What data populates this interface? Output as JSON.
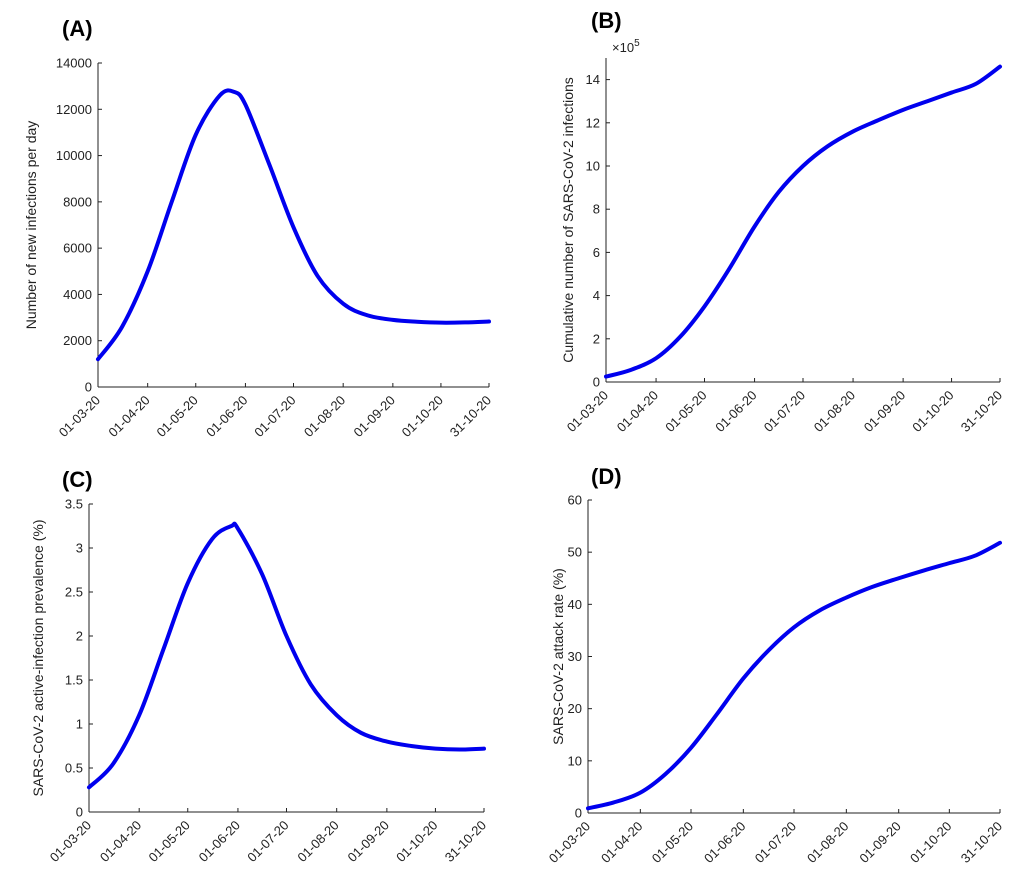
{
  "colors": {
    "line": "#0000ee",
    "axis": "#222222"
  },
  "chart_data": [
    {
      "panel": "(A)",
      "type": "line",
      "title": "",
      "xlabel": "",
      "ylabel": "Number of new infections per day",
      "x_ticks": [
        "01-03-20",
        "01-04-20",
        "01-05-20",
        "01-06-20",
        "01-07-20",
        "01-08-20",
        "01-09-20",
        "01-10-20",
        "31-10-20"
      ],
      "y_ticks": [
        "0",
        "2000",
        "4000",
        "6000",
        "8000",
        "10000",
        "12000",
        "14000"
      ],
      "ylim": [
        0,
        14000
      ],
      "exponent": "",
      "grid": false,
      "series": [
        {
          "x": [
            "01-03-20",
            "16-03-20",
            "01-04-20",
            "16-04-20",
            "01-05-20",
            "16-05-20",
            "25-05-20",
            "01-06-20",
            "16-06-20",
            "01-07-20",
            "16-07-20",
            "01-08-20",
            "16-08-20",
            "01-09-20",
            "16-09-20",
            "01-10-20",
            "16-10-20",
            "31-10-20"
          ],
          "y": [
            1200,
            2600,
            5000,
            8000,
            10900,
            12600,
            12750,
            12200,
            9600,
            6900,
            4800,
            3600,
            3100,
            2900,
            2820,
            2780,
            2790,
            2830
          ]
        }
      ]
    },
    {
      "panel": "(B)",
      "type": "line",
      "title": "",
      "xlabel": "",
      "ylabel": "Cumulative number of SARS-CoV-2 infections",
      "x_ticks": [
        "01-03-20",
        "01-04-20",
        "01-05-20",
        "01-06-20",
        "01-07-20",
        "01-08-20",
        "01-09-20",
        "01-10-20",
        "31-10-20"
      ],
      "y_ticks": [
        "0",
        "2",
        "4",
        "6",
        "8",
        "10",
        "12",
        "14"
      ],
      "ylim": [
        0,
        15
      ],
      "exponent": "×10",
      "exponent_power": "5",
      "grid": false,
      "series": [
        {
          "x": [
            "01-03-20",
            "16-03-20",
            "01-04-20",
            "16-04-20",
            "01-05-20",
            "16-05-20",
            "01-06-20",
            "16-06-20",
            "01-07-20",
            "16-07-20",
            "01-08-20",
            "16-08-20",
            "01-09-20",
            "16-09-20",
            "01-10-20",
            "16-10-20",
            "31-10-20"
          ],
          "y": [
            0.25,
            0.55,
            1.1,
            2.1,
            3.5,
            5.2,
            7.2,
            8.8,
            10.0,
            10.9,
            11.6,
            12.1,
            12.6,
            13.0,
            13.4,
            13.8,
            14.6
          ]
        }
      ]
    },
    {
      "panel": "(C)",
      "type": "line",
      "title": "",
      "xlabel": "",
      "ylabel": "SARS-CoV-2 active-infection prevalence (%)",
      "x_ticks": [
        "01-03-20",
        "01-04-20",
        "01-05-20",
        "01-06-20",
        "01-07-20",
        "01-08-20",
        "01-09-20",
        "01-10-20",
        "31-10-20"
      ],
      "y_ticks": [
        "0",
        "0.5",
        "1",
        "1.5",
        "2",
        "2.5",
        "3",
        "3.5"
      ],
      "ylim": [
        0,
        3.5
      ],
      "exponent": "",
      "grid": false,
      "series": [
        {
          "x": [
            "01-03-20",
            "16-03-20",
            "01-04-20",
            "16-04-20",
            "01-05-20",
            "16-05-20",
            "28-05-20",
            "01-06-20",
            "16-06-20",
            "01-07-20",
            "16-07-20",
            "01-08-20",
            "16-08-20",
            "01-09-20",
            "16-09-20",
            "01-10-20",
            "16-10-20",
            "31-10-20"
          ],
          "y": [
            0.28,
            0.55,
            1.1,
            1.85,
            2.6,
            3.1,
            3.25,
            3.22,
            2.7,
            2.0,
            1.45,
            1.1,
            0.9,
            0.8,
            0.75,
            0.72,
            0.71,
            0.72
          ]
        }
      ]
    },
    {
      "panel": "(D)",
      "type": "line",
      "title": "",
      "xlabel": "",
      "ylabel": "SARS-CoV-2 attack rate (%)",
      "x_ticks": [
        "01-03-20",
        "01-04-20",
        "01-05-20",
        "01-06-20",
        "01-07-20",
        "01-08-20",
        "01-09-20",
        "01-10-20",
        "31-10-20"
      ],
      "y_ticks": [
        "0",
        "10",
        "20",
        "30",
        "40",
        "50",
        "60"
      ],
      "ylim": [
        0,
        60
      ],
      "exponent": "",
      "grid": false,
      "series": [
        {
          "x": [
            "01-03-20",
            "16-03-20",
            "01-04-20",
            "16-04-20",
            "01-05-20",
            "16-05-20",
            "01-06-20",
            "16-06-20",
            "01-07-20",
            "16-07-20",
            "01-08-20",
            "16-08-20",
            "01-09-20",
            "16-09-20",
            "01-10-20",
            "16-10-20",
            "31-10-20"
          ],
          "y": [
            0.9,
            2.0,
            3.9,
            7.5,
            12.5,
            18.8,
            25.8,
            31.2,
            35.6,
            38.8,
            41.3,
            43.3,
            45.0,
            46.5,
            47.9,
            49.3,
            51.8
          ]
        }
      ]
    }
  ]
}
